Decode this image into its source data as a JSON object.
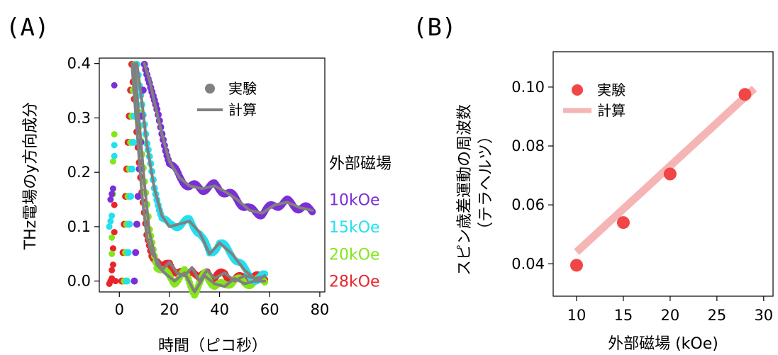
{
  "panel_labels": [
    "(A)",
    "(B)"
  ],
  "chart_data": [
    {
      "type": "line",
      "panel": "(A)",
      "xlabel": "時間（ピコ秒）",
      "ylabel": "THz電場のy方向成分",
      "xlim": [
        -8,
        82
      ],
      "ylim": [
        -0.02,
        0.41
      ],
      "x_ticks": [
        0,
        20,
        40,
        60,
        80
      ],
      "y_ticks": [
        0.0,
        0.1,
        0.2,
        0.3,
        0.4
      ],
      "grid": false,
      "legend": {
        "placement": "top-right",
        "entries": [
          {
            "label": "実験",
            "marker": "circle",
            "color": "#808080"
          },
          {
            "label": "計算",
            "marker": "line",
            "color": "#808080"
          }
        ]
      },
      "group_label": "外部磁場",
      "calc_color": "#808080",
      "series": [
        {
          "name": "10kOe",
          "color": "#7b2fd6",
          "offset": 0.15,
          "pre": [
            [
              -2,
              0.36
            ],
            [
              -2.5,
              0.17
            ],
            [
              -3,
              0.16
            ],
            [
              -3.5,
              0.15
            ]
          ],
          "calc_x": [
            10,
            12,
            14,
            17,
            20,
            24,
            28,
            33,
            38,
            42,
            47,
            52,
            57,
            62,
            67,
            72,
            77
          ],
          "calc_y": [
            0.4,
            0.37,
            0.33,
            0.27,
            0.22,
            0.19,
            0.175,
            0.17,
            0.175,
            0.165,
            0.15,
            0.13,
            0.125,
            0.14,
            0.145,
            0.135,
            0.13
          ]
        },
        {
          "name": "15kOe",
          "color": "#22e0ef",
          "offset": 0.1,
          "pre": [
            [
              -2,
              0.25
            ],
            [
              -2,
              0.23
            ],
            [
              -3,
              0.12
            ],
            [
              -3.5,
              0.11
            ],
            [
              -4,
              0.1
            ]
          ],
          "calc_x": [
            7,
            9,
            11,
            14,
            17,
            20,
            24,
            28,
            32,
            36,
            40,
            45,
            50,
            55,
            58
          ],
          "calc_y": [
            0.4,
            0.33,
            0.25,
            0.17,
            0.12,
            0.1,
            0.105,
            0.11,
            0.09,
            0.05,
            0.07,
            0.05,
            0.02,
            0.0,
            0.01
          ]
        },
        {
          "name": "20kOe",
          "color": "#84e61a",
          "offset": 0.05,
          "pre": [
            [
              -2,
              0.27
            ],
            [
              -2.5,
              0.22
            ],
            [
              -2.5,
              0.16
            ],
            [
              -3,
              0.08
            ],
            [
              -3,
              0.05
            ]
          ],
          "calc_x": [
            6,
            8,
            10,
            12,
            15,
            18,
            22,
            26,
            30,
            34,
            38,
            42,
            46,
            50,
            54,
            58
          ],
          "calc_y": [
            0.4,
            0.29,
            0.18,
            0.09,
            0.03,
            0.015,
            0.0,
            0.015,
            -0.02,
            0.01,
            -0.005,
            -0.01,
            0.005,
            -0.005,
            0.0,
            0.0
          ]
        },
        {
          "name": "28kOe",
          "color": "#e8262a",
          "offset": 0.0,
          "pre": [
            [
              -2,
              0.14
            ],
            [
              -2,
              0.09
            ],
            [
              -2.5,
              0.06
            ],
            [
              -2.5,
              0.03
            ],
            [
              -3,
              0.02
            ],
            [
              -3,
              0.005
            ],
            [
              -3.5,
              0.0
            ],
            [
              -4,
              -0.005
            ],
            [
              -1.5,
              0.0
            ]
          ],
          "calc_x": [
            5,
            7,
            9,
            11,
            13,
            15,
            17,
            20,
            23,
            26,
            29,
            32,
            35,
            38,
            42,
            46,
            50,
            54,
            58
          ],
          "calc_y": [
            0.4,
            0.28,
            0.16,
            0.08,
            0.05,
            0.04,
            0.02,
            0.035,
            0.015,
            0.01,
            0.025,
            0.0,
            0.02,
            0.005,
            0.015,
            0.0,
            0.01,
            0.005,
            0.008
          ]
        }
      ]
    },
    {
      "type": "scatter",
      "panel": "(B)",
      "xlabel": "外部磁場 (kOe)",
      "ylabel": "スピン歳差運動の周波数",
      "ylabel2": "（テラヘルツ）",
      "xlim": [
        7.5,
        31
      ],
      "ylim": [
        0.029,
        0.112
      ],
      "x_ticks": [
        10,
        15,
        20,
        25,
        30
      ],
      "y_ticks": [
        0.04,
        0.06,
        0.08,
        0.1
      ],
      "grid": false,
      "legend": {
        "placement": "top-left",
        "entries": [
          {
            "label": "実験",
            "marker": "circle",
            "color": "#f04646"
          },
          {
            "label": "計算",
            "marker": "line",
            "color": "#f6b5b5"
          }
        ]
      },
      "exp_color": "#f04646",
      "calc_color": "#f6b5b5",
      "x": [
        10,
        15,
        20,
        28
      ],
      "y": [
        0.0395,
        0.054,
        0.0705,
        0.0975
      ],
      "calc_line": {
        "x": [
          10,
          29
        ],
        "y": [
          0.044,
          0.0995
        ]
      }
    }
  ]
}
